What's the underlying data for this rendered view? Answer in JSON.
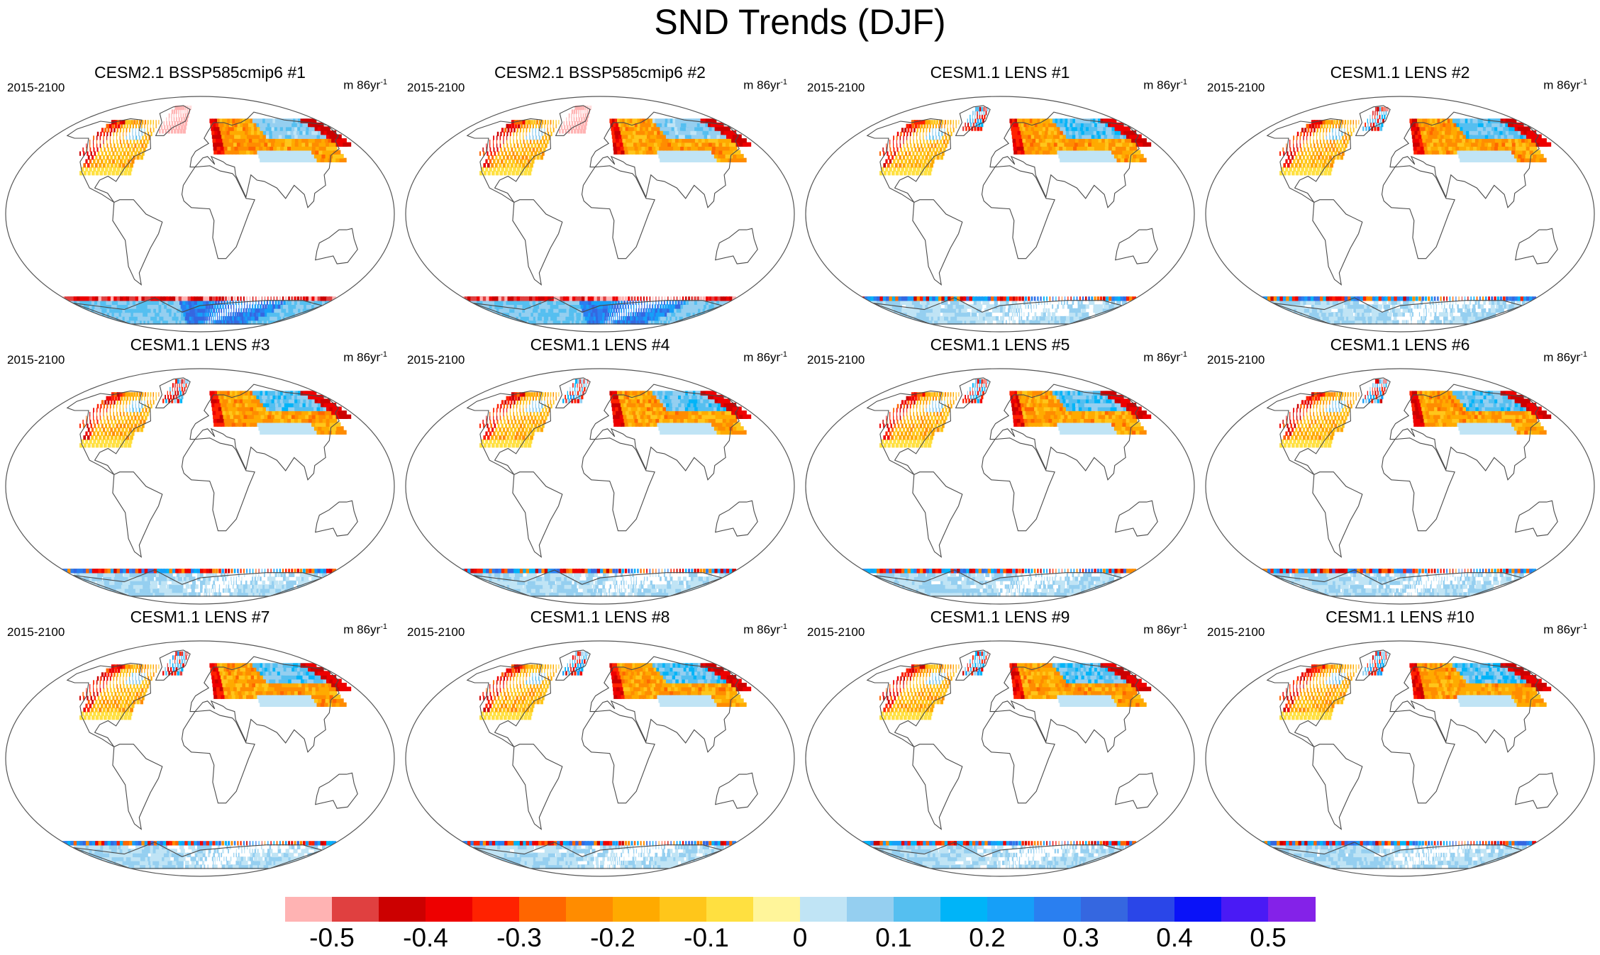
{
  "chart_data": {
    "type": "heatmap",
    "title": "SND Trends (DJF)",
    "variable": "SND",
    "season": "DJF",
    "panels": [
      {
        "name": "CESM2.1 BSSP585cmip6 #1",
        "period": "2015-2100",
        "units": "m 86yr",
        "units_exp": "-1"
      },
      {
        "name": "CESM2.1 BSSP585cmip6 #2",
        "period": "2015-2100",
        "units": "m 86yr",
        "units_exp": "-1"
      },
      {
        "name": "CESM1.1 LENS #1",
        "period": "2015-2100",
        "units": "m 86yr",
        "units_exp": "-1"
      },
      {
        "name": "CESM1.1 LENS #2",
        "period": "2015-2100",
        "units": "m 86yr",
        "units_exp": "-1"
      },
      {
        "name": "CESM1.1 LENS #3",
        "period": "2015-2100",
        "units": "m 86yr",
        "units_exp": "-1"
      },
      {
        "name": "CESM1.1 LENS #4",
        "period": "2015-2100",
        "units": "m 86yr",
        "units_exp": "-1"
      },
      {
        "name": "CESM1.1 LENS #5",
        "period": "2015-2100",
        "units": "m 86yr",
        "units_exp": "-1"
      },
      {
        "name": "CESM1.1 LENS #6",
        "period": "2015-2100",
        "units": "m 86yr",
        "units_exp": "-1"
      },
      {
        "name": "CESM1.1 LENS #7",
        "period": "2015-2100",
        "units": "m 86yr",
        "units_exp": "-1"
      },
      {
        "name": "CESM1.1 LENS #8",
        "period": "2015-2100",
        "units": "m 86yr",
        "units_exp": "-1"
      },
      {
        "name": "CESM1.1 LENS #9",
        "period": "2015-2100",
        "units": "m 86yr",
        "units_exp": "-1"
      },
      {
        "name": "CESM1.1 LENS #10",
        "period": "2015-2100",
        "units": "m 86yr",
        "units_exp": "-1"
      }
    ],
    "colorbar": {
      "colors": [
        "#ffb3b3",
        "#e04040",
        "#cc0000",
        "#ee0000",
        "#ff2200",
        "#ff6600",
        "#ff8c00",
        "#ffaa00",
        "#ffc61a",
        "#ffe040",
        "#fff59a",
        "#c0e4f5",
        "#95cff0",
        "#55bff0",
        "#00b4f8",
        "#169ff8",
        "#2a7ff0",
        "#3567e0",
        "#2a46e8",
        "#0a12f8",
        "#4a1af5",
        "#8422e8"
      ],
      "ticks": [
        -0.5,
        -0.4,
        -0.3,
        -0.2,
        -0.1,
        0,
        0.1,
        0.2,
        0.3,
        0.4,
        0.5
      ],
      "tick_labels": [
        "-0.5",
        "-0.4",
        "-0.3",
        "-0.2",
        "-0.1",
        "0",
        "0.1",
        "0.2",
        "0.3",
        "0.4",
        "0.5"
      ],
      "range": [
        -0.55,
        0.55
      ]
    },
    "regions": {
      "warm": "Northern Hemisphere midlatitude land (North America, Europe, Asia): mostly negative trends",
      "cool": "Northern Siberia and Antarctica interior: mostly positive trends"
    }
  }
}
